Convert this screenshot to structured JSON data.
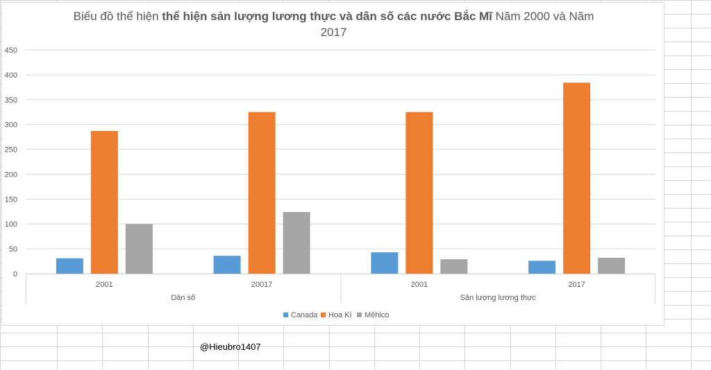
{
  "colors": {
    "canada": "#5b9bd5",
    "hoa_ki": "#ed7d31",
    "mehico": "#a5a5a5",
    "gridline": "#d9d9d9",
    "axis_text": "#595959",
    "sheet_grid": "#d4d4d4"
  },
  "chart_data": {
    "type": "bar",
    "title_parts": {
      "lead": "Biểu đồ thể hiện ",
      "bold": "thể hiện sản lượng lương thực và dân số các nước Bắc Mĩ",
      "tail": " Năm 2000 và Năm",
      "line2": "2017"
    },
    "groups": [
      {
        "name": "Dân số",
        "categories": [
          "2001",
          "20017"
        ]
      },
      {
        "name": "Sản lượng lương thực",
        "categories": [
          "2001",
          "2017"
        ]
      }
    ],
    "series": [
      {
        "name": "Canada",
        "values": [
          31,
          36,
          43,
          26
        ]
      },
      {
        "name": "Hoa Kì",
        "values": [
          287,
          325,
          325,
          384
        ]
      },
      {
        "name": "Mêhico",
        "values": [
          100,
          124,
          29,
          32
        ]
      }
    ],
    "yticks": [
      "0",
      "50",
      "100",
      "150",
      "200",
      "250",
      "300",
      "350",
      "400",
      "450"
    ],
    "ylim": [
      0,
      450
    ],
    "grid": true,
    "legend_position": "bottom"
  },
  "credit": "@Hieubro1407"
}
